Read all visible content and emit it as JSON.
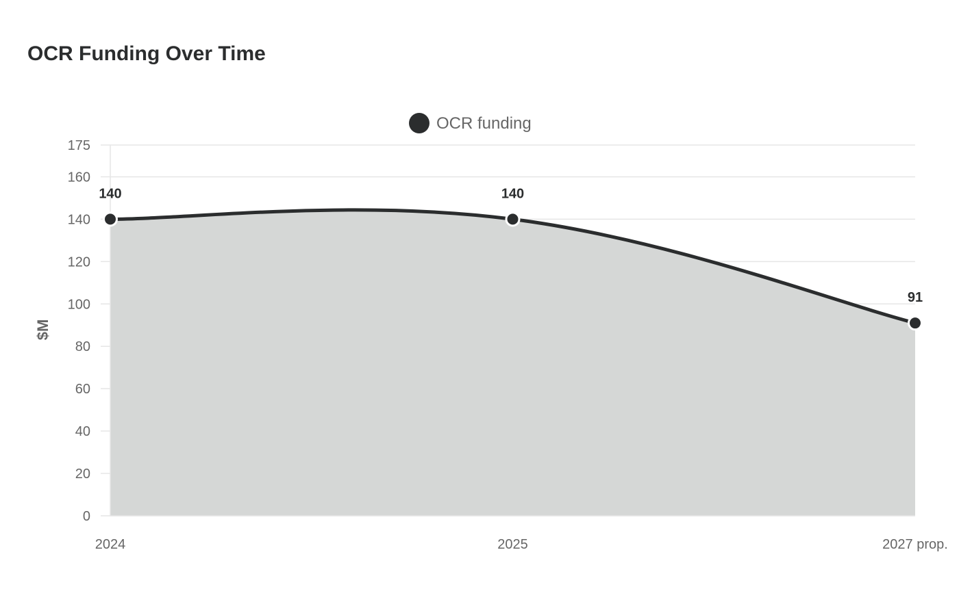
{
  "chart_data": {
    "type": "area",
    "title": "OCR Funding Over Time",
    "ylabel": "$M",
    "xlabel": "",
    "categories": [
      "2024",
      "2025",
      "2027 prop."
    ],
    "series": [
      {
        "name": "OCR funding",
        "values": [
          140,
          140,
          91
        ]
      }
    ],
    "ylim": [
      0,
      175
    ],
    "yticks": [
      0,
      20,
      40,
      60,
      80,
      100,
      120,
      140,
      160,
      175
    ],
    "grid": true,
    "legend": "top-center",
    "colors": {
      "line": "#2b2d2e",
      "fill": "#d5d7d6",
      "grid": "#e6e6e6",
      "text": "#666666"
    }
  }
}
